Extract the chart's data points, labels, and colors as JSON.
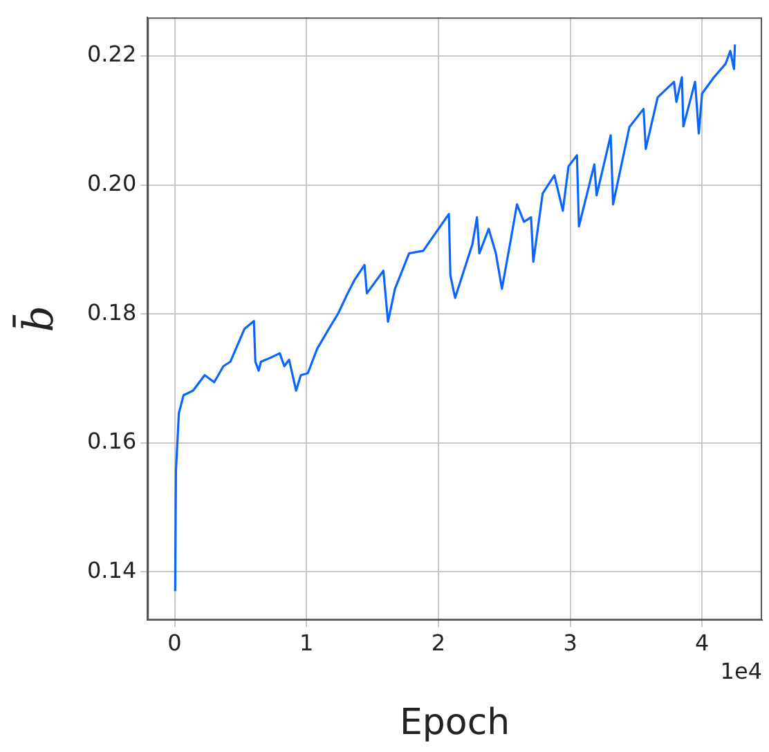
{
  "chart_data": {
    "type": "line",
    "xlabel": "Epoch",
    "ylabel": "b̄",
    "annotations": [
      "1e4"
    ],
    "xlim": [
      -0.206,
      4.455
    ],
    "ylim": [
      0.1325,
      0.226
    ],
    "xticks": [
      0,
      1,
      2,
      3,
      4
    ],
    "yticks": [
      0.14,
      0.16,
      0.18,
      {
        "value": 0.2,
        "label": "0.20"
      },
      0.22
    ],
    "grid": true,
    "legend": false,
    "marker": "none",
    "line_style": "solid",
    "series": [
      {
        "color": "#0a64ff",
        "x": [
          0.004,
          0.01,
          0.032,
          0.068,
          0.139,
          0.228,
          0.3,
          0.37,
          0.423,
          0.53,
          0.601,
          0.612,
          0.637,
          0.655,
          0.726,
          0.797,
          0.832,
          0.868,
          0.921,
          0.957,
          1.01,
          1.081,
          1.17,
          1.241,
          1.312,
          1.365,
          1.44,
          1.458,
          1.583,
          1.618,
          1.671,
          1.778,
          1.885,
          1.991,
          2.08,
          2.091,
          2.127,
          2.258,
          2.293,
          2.311,
          2.382,
          2.436,
          2.482,
          2.543,
          2.596,
          2.649,
          2.703,
          2.72,
          2.791,
          2.88,
          2.944,
          2.987,
          3.051,
          3.066,
          3.183,
          3.2,
          3.307,
          3.325,
          3.449,
          3.556,
          3.573,
          3.663,
          3.787,
          3.805,
          3.847,
          3.858,
          3.947,
          3.975,
          4.0,
          4.089,
          4.178,
          4.214,
          4.242,
          4.249
        ],
        "values": [
          0.137,
          0.1557,
          0.1646,
          0.1674,
          0.1681,
          0.1705,
          0.1694,
          0.1719,
          0.1726,
          0.1777,
          0.1789,
          0.1726,
          0.1712,
          0.1726,
          0.1732,
          0.1739,
          0.1719,
          0.1729,
          0.1681,
          0.1705,
          0.1708,
          0.1746,
          0.1777,
          0.1801,
          0.1832,
          0.1853,
          0.1876,
          0.1832,
          0.1867,
          0.1788,
          0.1839,
          0.1894,
          0.1898,
          0.1929,
          0.1955,
          0.186,
          0.1825,
          0.1908,
          0.195,
          0.1894,
          0.1932,
          0.1894,
          0.1839,
          0.1908,
          0.197,
          0.1943,
          0.195,
          0.1881,
          0.1987,
          0.2015,
          0.196,
          0.2029,
          0.2046,
          0.1936,
          0.2032,
          0.1984,
          0.2077,
          0.197,
          0.209,
          0.2118,
          0.2056,
          0.2136,
          0.216,
          0.2129,
          0.2167,
          0.2091,
          0.216,
          0.208,
          0.2142,
          0.2167,
          0.2188,
          0.2208,
          0.218,
          0.2218
        ]
      }
    ]
  }
}
